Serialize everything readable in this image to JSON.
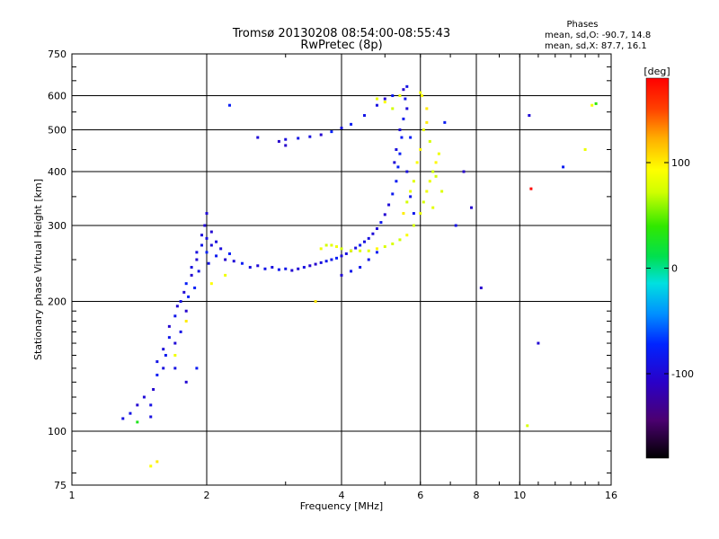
{
  "chart_data": {
    "type": "scatter",
    "title": "Tromsø 20130208 08:54:00-08:55:43",
    "subtitle": "RwPretec (8p)",
    "xlabel": "Frequency [MHz]",
    "ylabel": "Stationary phase Virtual Height [km]",
    "x_scale": "log",
    "y_scale": "log",
    "xlim": [
      1,
      16
    ],
    "ylim": [
      75,
      750
    ],
    "x_ticks": [
      1,
      2,
      4,
      6,
      8,
      10,
      16
    ],
    "x_tick_labels": [
      "1",
      "2",
      "4",
      "6",
      "8",
      "10",
      "16"
    ],
    "x_grid": [
      2,
      4,
      6,
      8,
      10
    ],
    "y_ticks": [
      75,
      100,
      200,
      300,
      400,
      500,
      600,
      750
    ],
    "y_tick_labels": [
      "75",
      "100",
      "200",
      "300",
      "400",
      "500",
      "600",
      "750"
    ],
    "y_grid": [
      100,
      200,
      300,
      400,
      500,
      600
    ],
    "grid": true,
    "phases_box": {
      "title": "Phases",
      "line_o": "mean, sd,O: -90.7, 14.8",
      "line_x": "mean, sd,X:  87.7, 16.1"
    },
    "colorbar": {
      "label": "[deg]",
      "range": [
        -180,
        180
      ],
      "ticks": [
        100,
        0,
        -100
      ],
      "tick_labels": [
        "100",
        "0",
        "-100"
      ],
      "colormap": "rainbow"
    },
    "series": [
      {
        "name": "O",
        "mean_phase": -90.7,
        "sd": 14.8,
        "points": [
          [
            1.3,
            107
          ],
          [
            1.35,
            110
          ],
          [
            1.4,
            115
          ],
          [
            1.45,
            120
          ],
          [
            1.5,
            108
          ],
          [
            1.5,
            115
          ],
          [
            1.52,
            125
          ],
          [
            1.55,
            135
          ],
          [
            1.55,
            145
          ],
          [
            1.6,
            140
          ],
          [
            1.6,
            155
          ],
          [
            1.62,
            150
          ],
          [
            1.65,
            165
          ],
          [
            1.65,
            175
          ],
          [
            1.7,
            140
          ],
          [
            1.7,
            160
          ],
          [
            1.7,
            185
          ],
          [
            1.72,
            195
          ],
          [
            1.75,
            170
          ],
          [
            1.75,
            200
          ],
          [
            1.78,
            210
          ],
          [
            1.8,
            190
          ],
          [
            1.8,
            220
          ],
          [
            1.82,
            205
          ],
          [
            1.85,
            230
          ],
          [
            1.85,
            240
          ],
          [
            1.88,
            215
          ],
          [
            1.9,
            250
          ],
          [
            1.9,
            260
          ],
          [
            1.92,
            235
          ],
          [
            1.95,
            270
          ],
          [
            1.95,
            285
          ],
          [
            1.98,
            300
          ],
          [
            2.0,
            260
          ],
          [
            2.0,
            280
          ],
          [
            2.0,
            320
          ],
          [
            2.02,
            245
          ],
          [
            2.05,
            270
          ],
          [
            2.05,
            290
          ],
          [
            2.1,
            255
          ],
          [
            2.1,
            275
          ],
          [
            2.15,
            265
          ],
          [
            2.2,
            250
          ],
          [
            2.25,
            258
          ],
          [
            2.3,
            248
          ],
          [
            2.4,
            245
          ],
          [
            2.5,
            240
          ],
          [
            2.6,
            242
          ],
          [
            2.7,
            238
          ],
          [
            2.8,
            240
          ],
          [
            2.9,
            237
          ],
          [
            3.0,
            238
          ],
          [
            3.1,
            236
          ],
          [
            3.2,
            238
          ],
          [
            3.3,
            240
          ],
          [
            3.4,
            242
          ],
          [
            3.5,
            244
          ],
          [
            3.6,
            246
          ],
          [
            3.7,
            248
          ],
          [
            3.8,
            250
          ],
          [
            3.9,
            252
          ],
          [
            4.0,
            255
          ],
          [
            4.1,
            258
          ],
          [
            4.2,
            262
          ],
          [
            4.3,
            266
          ],
          [
            4.4,
            270
          ],
          [
            4.5,
            275
          ],
          [
            4.6,
            280
          ],
          [
            4.7,
            287
          ],
          [
            4.8,
            295
          ],
          [
            4.9,
            305
          ],
          [
            5.0,
            318
          ],
          [
            5.1,
            335
          ],
          [
            5.2,
            355
          ],
          [
            5.3,
            380
          ],
          [
            5.35,
            410
          ],
          [
            5.4,
            440
          ],
          [
            5.45,
            480
          ],
          [
            5.5,
            530
          ],
          [
            5.55,
            590
          ],
          [
            5.6,
            630
          ],
          [
            5.5,
            620
          ],
          [
            5.4,
            500
          ],
          [
            5.3,
            450
          ],
          [
            5.25,
            420
          ],
          [
            5.6,
            400
          ],
          [
            5.7,
            350
          ],
          [
            5.8,
            320
          ],
          [
            5.6,
            560
          ],
          [
            5.7,
            480
          ],
          [
            2.9,
            470
          ],
          [
            3.0,
            475
          ],
          [
            3.2,
            478
          ],
          [
            3.4,
            482
          ],
          [
            3.6,
            487
          ],
          [
            3.8,
            495
          ],
          [
            4.0,
            505
          ],
          [
            4.2,
            515
          ],
          [
            4.5,
            540
          ],
          [
            4.8,
            570
          ],
          [
            5.0,
            590
          ],
          [
            5.2,
            600
          ],
          [
            2.25,
            570
          ],
          [
            2.6,
            480
          ],
          [
            3.0,
            460
          ],
          [
            4.0,
            230
          ],
          [
            4.2,
            235
          ],
          [
            4.4,
            240
          ],
          [
            4.6,
            250
          ],
          [
            4.8,
            260
          ],
          [
            10.5,
            540
          ],
          [
            12.5,
            410
          ],
          [
            11.0,
            160
          ],
          [
            8.2,
            215
          ],
          [
            7.8,
            330
          ],
          [
            7.5,
            400
          ],
          [
            7.2,
            300
          ],
          [
            6.8,
            520
          ],
          [
            1.9,
            140
          ],
          [
            1.8,
            130
          ]
        ]
      },
      {
        "name": "X",
        "mean_phase": 87.7,
        "sd": 16.1,
        "points": [
          [
            3.6,
            265
          ],
          [
            3.7,
            270
          ],
          [
            3.8,
            270
          ],
          [
            3.9,
            268
          ],
          [
            4.0,
            265
          ],
          [
            4.2,
            262
          ],
          [
            4.4,
            262
          ],
          [
            4.6,
            262
          ],
          [
            4.8,
            265
          ],
          [
            5.0,
            268
          ],
          [
            5.2,
            272
          ],
          [
            5.4,
            278
          ],
          [
            5.6,
            285
          ],
          [
            5.8,
            300
          ],
          [
            6.0,
            320
          ],
          [
            6.1,
            340
          ],
          [
            6.2,
            360
          ],
          [
            6.3,
            380
          ],
          [
            6.4,
            400
          ],
          [
            6.5,
            420
          ],
          [
            6.6,
            440
          ],
          [
            6.0,
            450
          ],
          [
            6.1,
            500
          ],
          [
            6.2,
            560
          ],
          [
            6.05,
            600
          ],
          [
            5.9,
            420
          ],
          [
            5.8,
            380
          ],
          [
            5.7,
            360
          ],
          [
            5.6,
            340
          ],
          [
            5.5,
            320
          ],
          [
            6.3,
            470
          ],
          [
            6.5,
            390
          ],
          [
            6.7,
            360
          ],
          [
            6.4,
            330
          ],
          [
            5.2,
            560
          ],
          [
            5.0,
            580
          ],
          [
            4.8,
            590
          ],
          [
            5.4,
            600
          ],
          [
            6.0,
            610
          ],
          [
            6.2,
            520
          ],
          [
            14.5,
            570
          ],
          [
            14.0,
            450
          ],
          [
            10.4,
            103
          ],
          [
            1.55,
            85
          ],
          [
            1.5,
            83
          ],
          [
            1.7,
            150
          ],
          [
            1.8,
            180
          ],
          [
            2.05,
            220
          ],
          [
            2.2,
            230
          ],
          [
            3.5,
            200
          ]
        ]
      }
    ],
    "highlight_points": [
      {
        "x": 10.6,
        "y": 365,
        "phase": 178
      },
      {
        "x": 14.8,
        "y": 575,
        "phase": 40
      },
      {
        "x": 1.4,
        "y": 105,
        "phase": 30
      }
    ]
  }
}
